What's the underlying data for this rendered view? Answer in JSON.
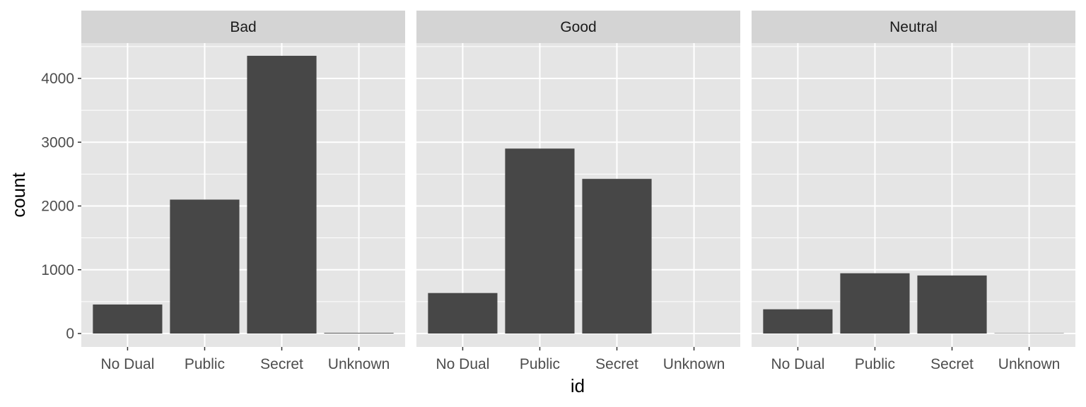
{
  "chart_data": {
    "type": "bar",
    "facet_variable": "",
    "xlabel": "id",
    "ylabel": "count",
    "ylim": [
      0,
      4560
    ],
    "y_ticks": [
      0,
      1000,
      2000,
      3000,
      4000
    ],
    "y_tick_labels": [
      "0",
      "1000",
      "2000",
      "3000",
      "4000"
    ],
    "categories": [
      "No Dual",
      "Public",
      "Secret",
      "Unknown"
    ],
    "grid": true,
    "colors": {
      "panel_bg": "#e5e5e5",
      "strip_bg": "#d4d4d4",
      "grid": "#ffffff",
      "bar": "#474747",
      "tick_text": "#4d4d4d"
    },
    "facets": [
      {
        "label": "Bad",
        "values": [
          455,
          2100,
          4355,
          10
        ]
      },
      {
        "label": "Good",
        "values": [
          635,
          2900,
          2425,
          0
        ]
      },
      {
        "label": "Neutral",
        "values": [
          380,
          945,
          910,
          5
        ]
      }
    ]
  }
}
